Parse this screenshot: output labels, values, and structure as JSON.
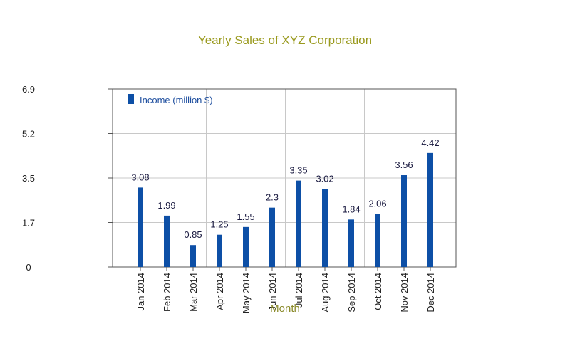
{
  "chart_data": {
    "type": "bar",
    "title": "Yearly Sales of XYZ Corporation",
    "xlabel": "Month",
    "ylabel": "",
    "categories": [
      "Jan 2014",
      "Feb 2014",
      "Mar 2014",
      "Apr 2014",
      "May 2014",
      "Jun 2014",
      "Jul 2014",
      "Aug 2014",
      "Sep 2014",
      "Oct 2014",
      "Nov 2014",
      "Dec 2014"
    ],
    "series": [
      {
        "name": "Income (million $)",
        "values": [
          3.08,
          1.99,
          0.85,
          1.25,
          1.55,
          2.3,
          3.35,
          3.02,
          1.84,
          2.06,
          3.56,
          4.42
        ]
      }
    ],
    "data_labels": [
      "3.08",
      "1.99",
      "0.85",
      "1.25",
      "1.55",
      "2.3",
      "3.35",
      "3.02",
      "1.84",
      "2.06",
      "3.56",
      "4.42"
    ],
    "yticks": [
      "0",
      "1.7",
      "3.5",
      "5.2",
      "6.9"
    ],
    "ylim": [
      0,
      6.9
    ],
    "grid": true,
    "legend_position": "top-left",
    "colors": {
      "bar": "#0d4fa6",
      "title": "#9a9a1e",
      "legend_text": "#1f4f9f",
      "grid": "#c8c8c8",
      "axis": "#555555"
    }
  }
}
